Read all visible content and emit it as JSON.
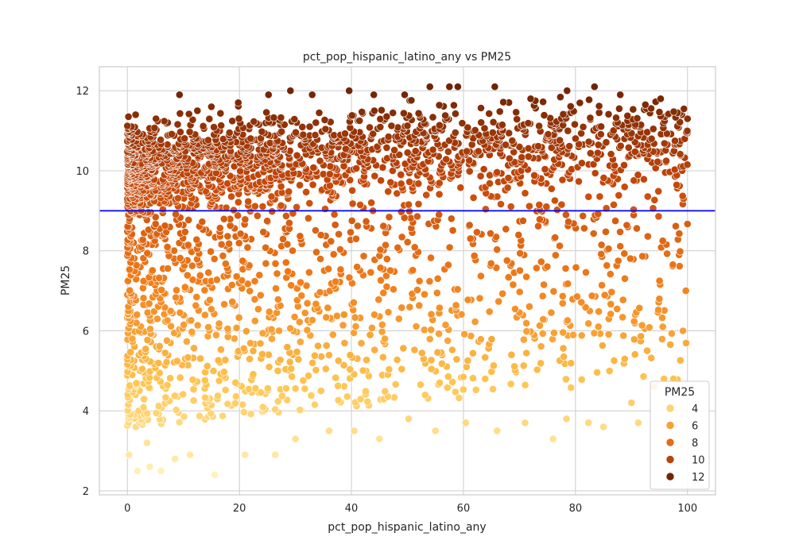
{
  "chart_data": {
    "type": "scatter",
    "title": "pct_pop_hispanic_latino_any vs PM25",
    "xlabel": "pct_pop_hispanic_latino_any",
    "ylabel": "PM25",
    "xlim": [
      -5,
      105
    ],
    "ylim": [
      1.9,
      12.6
    ],
    "xticks": [
      0,
      20,
      40,
      60,
      80,
      100
    ],
    "yticks": [
      2,
      4,
      6,
      8,
      10,
      12
    ],
    "grid": true,
    "reference_line": {
      "y": 9,
      "color": "#0000ff"
    },
    "colorscale": [
      "#fff4c0",
      "#fec44f",
      "#f07d1b",
      "#c4470a",
      "#6b2203"
    ],
    "color_range": [
      2.3,
      12.2
    ],
    "legend": {
      "title": "PM25",
      "placement": "lower-right",
      "entries": [
        {
          "label": "4",
          "value": 4
        },
        {
          "label": "6",
          "value": 6
        },
        {
          "label": "8",
          "value": 8
        },
        {
          "label": "10",
          "value": 10
        },
        {
          "label": "12",
          "value": 12
        }
      ]
    },
    "points": [
      [
        0.5,
        10.6
      ],
      [
        1.2,
        9.8
      ],
      [
        2.0,
        4.0
      ],
      [
        0.3,
        2.9
      ],
      [
        1.8,
        2.5
      ],
      [
        3.5,
        3.2
      ],
      [
        5.1,
        11.3
      ],
      [
        7.2,
        11.2
      ],
      [
        9.3,
        11.9
      ],
      [
        12.5,
        11.5
      ],
      [
        15.0,
        11.6
      ],
      [
        19.8,
        11.7
      ],
      [
        25.2,
        11.9
      ],
      [
        29.1,
        12.0
      ],
      [
        33.0,
        11.9
      ],
      [
        39.6,
        12.0
      ],
      [
        44.0,
        11.9
      ],
      [
        49.5,
        11.9
      ],
      [
        54.0,
        12.1
      ],
      [
        57.5,
        12.1
      ],
      [
        59.0,
        12.1
      ],
      [
        65.6,
        12.1
      ],
      [
        72.0,
        11.8
      ],
      [
        78.5,
        12.0
      ],
      [
        83.4,
        12.1
      ],
      [
        88.0,
        11.9
      ],
      [
        95.2,
        11.8
      ],
      [
        99.0,
        11.4
      ],
      [
        100.0,
        11.3
      ],
      [
        99.5,
        10.8
      ],
      [
        99.3,
        9.3
      ],
      [
        98.5,
        7.9
      ],
      [
        99.7,
        7.0
      ],
      [
        99.2,
        6.0
      ],
      [
        97.5,
        4.8
      ],
      [
        95.8,
        4.8
      ],
      [
        94.0,
        4.6
      ],
      [
        91.2,
        3.7
      ],
      [
        90.0,
        4.2
      ],
      [
        85.0,
        3.6
      ],
      [
        82.3,
        3.7
      ],
      [
        78.4,
        3.8
      ],
      [
        76.0,
        3.3
      ],
      [
        71.0,
        3.7
      ],
      [
        66.0,
        3.5
      ],
      [
        60.4,
        3.7
      ],
      [
        55.0,
        3.5
      ],
      [
        50.2,
        3.8
      ],
      [
        45.0,
        3.3
      ],
      [
        40.5,
        3.5
      ],
      [
        36.0,
        3.5
      ],
      [
        30.0,
        3.3
      ],
      [
        26.4,
        2.9
      ],
      [
        21.0,
        2.9
      ],
      [
        15.6,
        2.4
      ],
      [
        11.2,
        2.9
      ],
      [
        8.5,
        2.8
      ],
      [
        6.0,
        2.5
      ],
      [
        4.0,
        2.6
      ],
      [
        1.5,
        3.6
      ],
      [
        2.3,
        5.0
      ],
      [
        0.2,
        6.5
      ],
      [
        1.1,
        8.2
      ],
      [
        0.8,
        9.1
      ]
    ]
  }
}
